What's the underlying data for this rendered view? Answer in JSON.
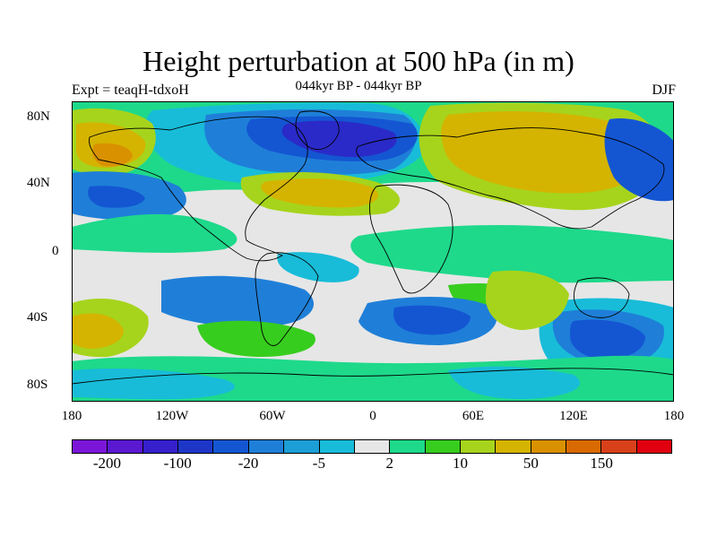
{
  "title": "Height perturbation at 500 hPa (in m)",
  "subtitle": "044kyr BP - 044kyr BP",
  "left_label": "Expt = teaqH-tdxoH",
  "right_label": "DJF",
  "lat_ticks": [
    "80N",
    "40N",
    "0",
    "40S",
    "80S"
  ],
  "lon_ticks": [
    "180",
    "120W",
    "60W",
    "0",
    "60E",
    "120E",
    "180"
  ],
  "colorbar": {
    "colors": [
      "#7b16d8",
      "#5a18d0",
      "#3520cc",
      "#1e36c8",
      "#1456d2",
      "#1f7fd8",
      "#1c9ed6",
      "#18bcd8",
      "#e6e6e6",
      "#1ed98a",
      "#37cd1e",
      "#a6d41c",
      "#d4b400",
      "#d99100",
      "#d86a00",
      "#d8401a",
      "#e0000f"
    ],
    "labels": [
      "-200",
      "-100",
      "-20",
      "-5",
      "2",
      "10",
      "50",
      "150"
    ]
  },
  "map_colors": {
    "background": "#e6e6e6",
    "deep_negative": "#2a2ac8",
    "negative": "#1456d2",
    "mid_negative": "#1f7fd8",
    "weak_negative": "#18bcd8",
    "weak_positive": "#1ed98a",
    "positive": "#37cd1e",
    "mid_positive": "#a6d41c",
    "strong_positive": "#d4b400",
    "peak_positive": "#d99100",
    "coastline": "#000000"
  }
}
